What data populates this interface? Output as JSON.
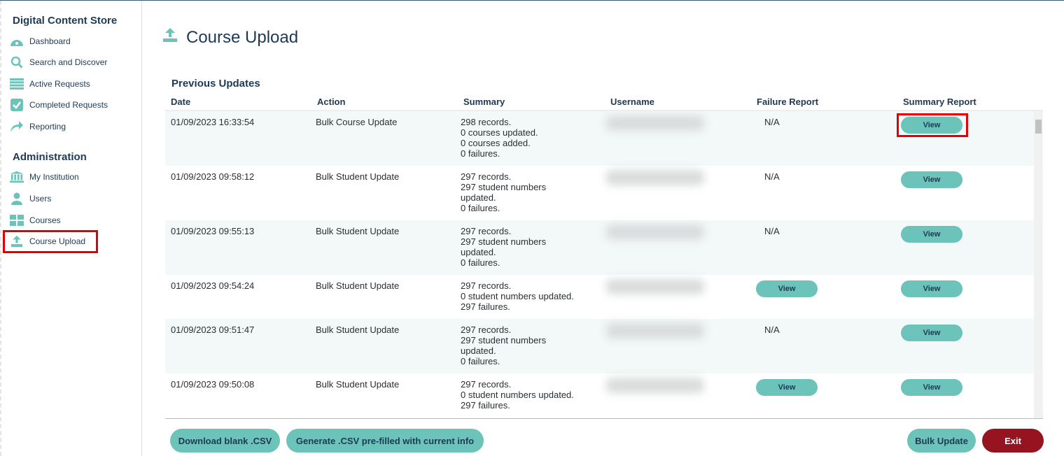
{
  "sidebar": {
    "section1": "Digital Content Store",
    "items1": [
      {
        "label": "Dashboard",
        "icon": "dashboard-icon"
      },
      {
        "label": "Search and Discover",
        "icon": "search-icon"
      },
      {
        "label": "Active Requests",
        "icon": "list-icon"
      },
      {
        "label": "Completed Requests",
        "icon": "checkbox-icon"
      },
      {
        "label": "Reporting",
        "icon": "share-arrow-icon"
      }
    ],
    "section2": "Administration",
    "items2": [
      {
        "label": "My Institution",
        "icon": "institution-icon"
      },
      {
        "label": "Users",
        "icon": "user-icon"
      },
      {
        "label": "Courses",
        "icon": "grid-icon"
      },
      {
        "label": "Course Upload",
        "icon": "upload-icon",
        "active": true
      }
    ]
  },
  "page": {
    "title": "Course Upload",
    "section": "Previous Updates"
  },
  "table": {
    "headers": [
      "Date",
      "Action",
      "Summary",
      "Username",
      "Failure Report",
      "Summary Report"
    ],
    "rows": [
      {
        "date": "01/09/2023 16:33:54",
        "action": "Bulk Course Update",
        "summary": [
          "298 records.",
          "0 courses updated.",
          "0 courses added.",
          "0 failures."
        ],
        "failure": "N/A",
        "summary_report": "View"
      },
      {
        "date": "01/09/2023 09:58:12",
        "action": "Bulk Student Update",
        "summary": [
          "297 records.",
          "297 student numbers",
          "updated.",
          "0 failures."
        ],
        "failure": "N/A",
        "summary_report": "View"
      },
      {
        "date": "01/09/2023 09:55:13",
        "action": "Bulk Student Update",
        "summary": [
          "297 records.",
          "297 student numbers",
          "updated.",
          "0 failures."
        ],
        "failure": "N/A",
        "summary_report": "View"
      },
      {
        "date": "01/09/2023 09:54:24",
        "action": "Bulk Student Update",
        "summary": [
          "297 records.",
          "0 student numbers updated.",
          "297 failures."
        ],
        "failure_button": "View",
        "summary_report": "View"
      },
      {
        "date": "01/09/2023 09:51:47",
        "action": "Bulk Student Update",
        "summary": [
          "297 records.",
          "297 student numbers",
          "updated.",
          "0 failures."
        ],
        "failure": "N/A",
        "summary_report": "View"
      },
      {
        "date": "01/09/2023 09:50:08",
        "action": "Bulk Student Update",
        "summary": [
          "297 records.",
          "0 student numbers updated.",
          "297 failures."
        ],
        "failure_button": "View",
        "summary_report": "View"
      }
    ]
  },
  "footer": {
    "download": "Download blank .CSV",
    "generate": "Generate .CSV pre-filled with current info",
    "bulk": "Bulk Update",
    "exit": "Exit"
  },
  "colors": {
    "accent": "#6cc3b9",
    "text": "#1d3a55",
    "exit": "#96141f",
    "highlight": "#e50000"
  }
}
